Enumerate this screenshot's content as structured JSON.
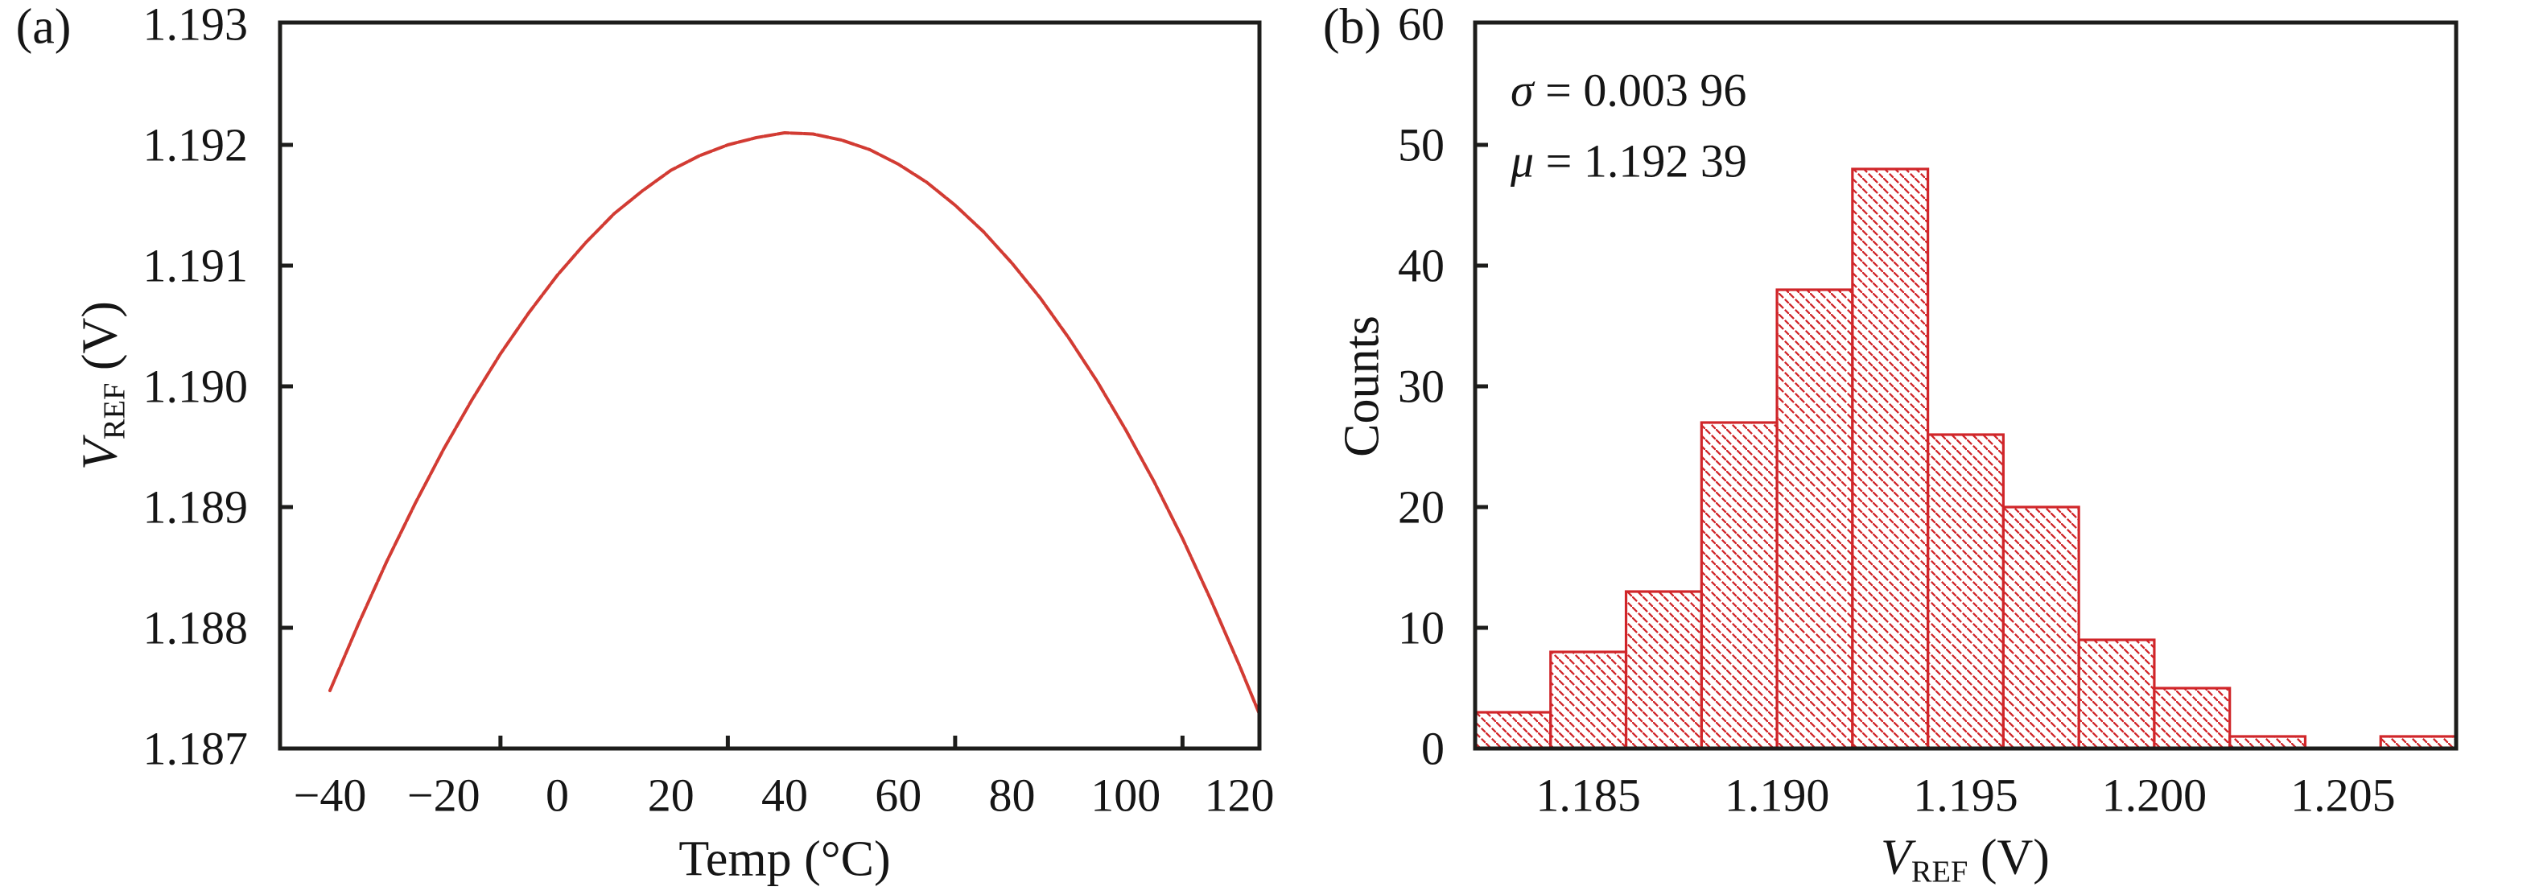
{
  "figure": {
    "background": "#ffffff",
    "axis_color": "#1d1d1b",
    "text_color": "#151515"
  },
  "panels": {
    "a": {
      "label": "(a)",
      "x_title": "Temp (°C)",
      "y_title": {
        "pre": "V",
        "sub": "REF",
        "post": " (V)"
      }
    },
    "b": {
      "label": "(b)",
      "x_title": {
        "pre": "V",
        "sub": "REF",
        "post": " (V)"
      },
      "y_title": "Counts",
      "annotations": [
        {
          "symbol": "σ",
          "text": " = 0.003 96"
        },
        {
          "symbol": "μ",
          "text": " = 1.192 39"
        }
      ]
    }
  },
  "chart_data": [
    {
      "type": "line",
      "panel": "(a)",
      "xlabel": "Temp (°C)",
      "ylabel": "V_REF (V)",
      "xlim": [
        -48.8,
        123.5
      ],
      "ylim": [
        1.187,
        1.193
      ],
      "grid": false,
      "legend": "none",
      "x_tick_labels": [
        {
          "v": -40,
          "label": "−40"
        },
        {
          "v": -20,
          "label": "−20"
        },
        {
          "v": 0,
          "label": "0"
        },
        {
          "v": 20,
          "label": "20"
        },
        {
          "v": 40,
          "label": "40"
        },
        {
          "v": 60,
          "label": "60"
        },
        {
          "v": 80,
          "label": "80"
        },
        {
          "v": 100,
          "label": "100"
        },
        {
          "v": 120,
          "label": "120"
        }
      ],
      "x_tick_marks": [
        -10,
        30,
        70,
        110
      ],
      "y_tick_labels": [
        {
          "v": 1.187,
          "label": "1.187"
        },
        {
          "v": 1.188,
          "label": "1.188"
        },
        {
          "v": 1.189,
          "label": "1.189"
        },
        {
          "v": 1.19,
          "label": "1.190"
        },
        {
          "v": 1.191,
          "label": "1.191"
        },
        {
          "v": 1.192,
          "label": "1.192"
        },
        {
          "v": 1.193,
          "label": "1.193"
        }
      ],
      "y_tick_marks": [
        1.188,
        1.189,
        1.19,
        1.191,
        1.192
      ],
      "series": [
        {
          "name": "VREF-vs-temperature",
          "color": "#d23b33",
          "peak": {
            "x": 41,
            "y": 1.1921
          },
          "x": [
            -40,
            -35,
            -30,
            -25,
            -20,
            -15,
            -10,
            -5,
            0,
            5,
            10,
            15,
            20,
            25,
            30,
            35,
            40,
            45,
            50,
            55,
            60,
            65,
            70,
            75,
            80,
            85,
            90,
            95,
            100,
            105,
            110,
            115,
            120,
            123.5
          ],
          "y": [
            1.18748,
            1.18803,
            1.18855,
            1.18903,
            1.18948,
            1.18989,
            1.19027,
            1.19061,
            1.19092,
            1.19119,
            1.19143,
            1.19162,
            1.19179,
            1.19191,
            1.192,
            1.19206,
            1.1921,
            1.19209,
            1.19204,
            1.19196,
            1.19184,
            1.19169,
            1.1915,
            1.19128,
            1.19102,
            1.19073,
            1.1904,
            1.19004,
            1.18964,
            1.18921,
            1.18874,
            1.18823,
            1.18769,
            1.18729
          ]
        }
      ]
    },
    {
      "type": "bar",
      "subtype": "histogram",
      "panel": "(b)",
      "xlabel": "V_REF (V)",
      "ylabel": "Counts",
      "xlim": [
        1.182,
        1.208
      ],
      "ylim": [
        0,
        60
      ],
      "grid": false,
      "sigma": "0.003 96",
      "mu": "1.192 39",
      "bin_width": 0.002,
      "bin_edges": [
        1.182,
        1.184,
        1.186,
        1.188,
        1.19,
        1.192,
        1.194,
        1.196,
        1.198,
        1.2,
        1.202,
        1.204,
        1.206,
        1.208
      ],
      "counts": [
        3,
        8,
        13,
        27,
        38,
        48,
        26,
        20,
        9,
        5,
        1,
        0,
        1
      ],
      "bar_color": "#d0262a",
      "hatch": "diagonal-down",
      "x_tick_labels": [
        {
          "v": 1.185,
          "label": "1.185"
        },
        {
          "v": 1.19,
          "label": "1.190"
        },
        {
          "v": 1.195,
          "label": "1.195"
        },
        {
          "v": 1.2,
          "label": "1.200"
        },
        {
          "v": 1.205,
          "label": "1.205"
        }
      ],
      "y_tick_labels": [
        {
          "v": 0,
          "label": "0"
        },
        {
          "v": 10,
          "label": "10"
        },
        {
          "v": 20,
          "label": "20"
        },
        {
          "v": 30,
          "label": "30"
        },
        {
          "v": 40,
          "label": "40"
        },
        {
          "v": 50,
          "label": "50"
        },
        {
          "v": 60,
          "label": "60"
        }
      ],
      "y_tick_marks": [
        10,
        20,
        30,
        40,
        50
      ]
    }
  ]
}
